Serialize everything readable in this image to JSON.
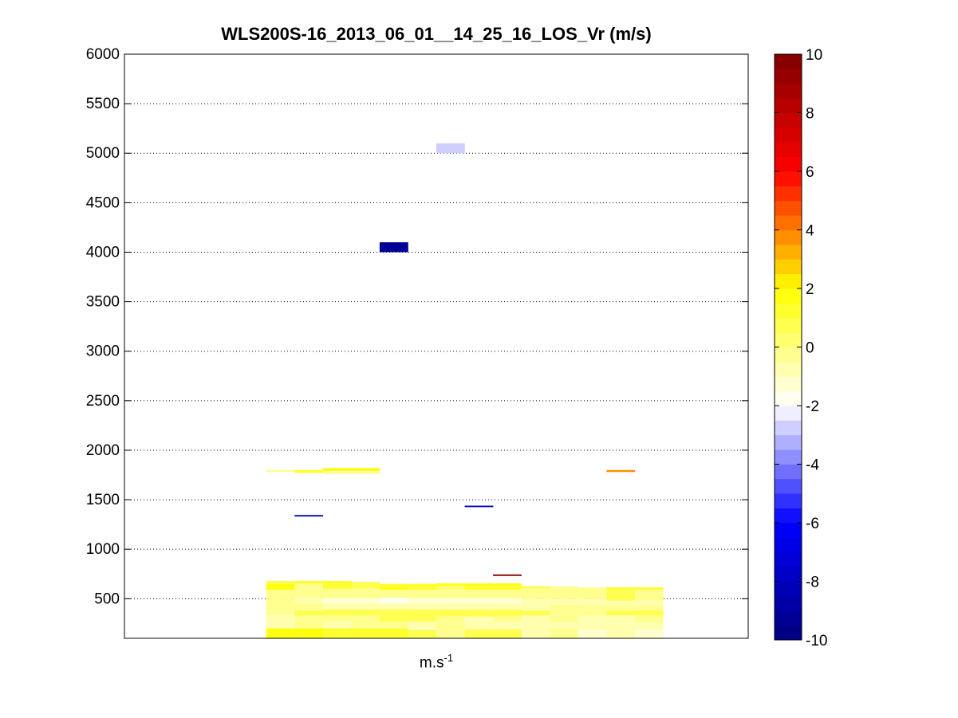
{
  "chart_data": {
    "type": "heatmap",
    "title": "WLS200S-16_2013_06_01__14_25_16_LOS_Vr (m/s)",
    "xlabel": "m.s",
    "xlabel_superscript": "-1",
    "ylabel": "",
    "ylim": [
      100,
      6000
    ],
    "yticks": [
      500,
      1000,
      1500,
      2000,
      2500,
      3000,
      3500,
      4000,
      4500,
      5000,
      5500,
      6000
    ],
    "grid": "horizontal dotted",
    "colorbar": {
      "range": [
        -10,
        10
      ],
      "ticks": [
        -10,
        -8,
        -6,
        -4,
        -2,
        0,
        2,
        4,
        6,
        8,
        10
      ],
      "levels": 40,
      "colormap": [
        "#00007f",
        "#0000ff",
        "#ffffff",
        "#ffff00",
        "#ff0000",
        "#7f0000"
      ]
    },
    "x_columns": {
      "count": 22,
      "first": 5,
      "last": 18
    },
    "cells": [
      {
        "col": 11,
        "y0": 5000,
        "y1": 5100,
        "v": -2.6
      },
      {
        "col": 9,
        "y0": 4000,
        "y1": 4100,
        "v": -9.5
      },
      {
        "col": 5,
        "y0": 1780,
        "y1": 1800,
        "v": -0.3
      },
      {
        "col": 6,
        "y0": 1770,
        "y1": 1800,
        "v": 1.2
      },
      {
        "col": 7,
        "y0": 1790,
        "y1": 1820,
        "v": 1.5
      },
      {
        "col": 8,
        "y0": 1790,
        "y1": 1820,
        "v": 1.5
      },
      {
        "col": 7,
        "y0": 1760,
        "y1": 1785,
        "v": -0.3
      },
      {
        "col": 8,
        "y0": 1760,
        "y1": 1785,
        "v": -0.3
      },
      {
        "col": 17,
        "y0": 1780,
        "y1": 1800,
        "v": 3.5
      },
      {
        "col": 6,
        "y0": 1330,
        "y1": 1345,
        "v": -8.5
      },
      {
        "col": 12,
        "y0": 1425,
        "y1": 1440,
        "v": -8.5
      },
      {
        "col": 13,
        "y0": 730,
        "y1": 745,
        "v": 9.5
      },
      {
        "col": 5,
        "y0": 650,
        "y1": 680,
        "v": 0.5
      },
      {
        "col": 6,
        "y0": 650,
        "y1": 680,
        "v": 1.2
      },
      {
        "col": 7,
        "y0": 650,
        "y1": 680,
        "v": 1.2
      },
      {
        "col": 8,
        "y0": 640,
        "y1": 670,
        "v": 0.5
      },
      {
        "col": 9,
        "y0": 620,
        "y1": 650,
        "v": 1.0
      },
      {
        "col": 10,
        "y0": 620,
        "y1": 650,
        "v": 1.2
      },
      {
        "col": 11,
        "y0": 630,
        "y1": 655,
        "v": 1.5
      },
      {
        "col": 12,
        "y0": 630,
        "y1": 655,
        "v": 1.5
      },
      {
        "col": 13,
        "y0": 630,
        "y1": 655,
        "v": 1.5
      },
      {
        "col": 14,
        "y0": 600,
        "y1": 625,
        "v": 0.5
      },
      {
        "col": 15,
        "y0": 600,
        "y1": 625,
        "v": -0.2
      },
      {
        "col": 16,
        "y0": 590,
        "y1": 615,
        "v": -0.4
      },
      {
        "col": 17,
        "y0": 590,
        "y1": 615,
        "v": 1.0
      },
      {
        "col": 18,
        "y0": 590,
        "y1": 615,
        "v": 1.2
      },
      {
        "col": 5,
        "y0": 590,
        "y1": 650,
        "v": 1.5
      },
      {
        "col": 6,
        "y0": 600,
        "y1": 650,
        "v": -0.4
      },
      {
        "col": 7,
        "y0": 600,
        "y1": 650,
        "v": 1.2
      },
      {
        "col": 8,
        "y0": 600,
        "y1": 640,
        "v": 0.5
      },
      {
        "col": 9,
        "y0": 590,
        "y1": 620,
        "v": 1.5
      },
      {
        "col": 10,
        "y0": 590,
        "y1": 620,
        "v": 1.2
      },
      {
        "col": 11,
        "y0": 590,
        "y1": 630,
        "v": 0.4
      },
      {
        "col": 12,
        "y0": 590,
        "y1": 630,
        "v": 1.2
      },
      {
        "col": 13,
        "y0": 590,
        "y1": 630,
        "v": 1.0
      },
      {
        "col": 17,
        "y0": 560,
        "y1": 590,
        "v": 0.6
      },
      {
        "col": 18,
        "y0": 560,
        "y1": 590,
        "v": -0.2
      },
      {
        "col": 5,
        "y0": 500,
        "y1": 590,
        "v": -0.3
      },
      {
        "col": 6,
        "y0": 510,
        "y1": 600,
        "v": -0.3
      },
      {
        "col": 7,
        "y0": 510,
        "y1": 600,
        "v": -0.2
      },
      {
        "col": 8,
        "y0": 510,
        "y1": 600,
        "v": -0.3
      },
      {
        "col": 9,
        "y0": 510,
        "y1": 590,
        "v": -0.3
      },
      {
        "col": 10,
        "y0": 510,
        "y1": 590,
        "v": -0.4
      },
      {
        "col": 11,
        "y0": 510,
        "y1": 590,
        "v": -0.2
      },
      {
        "col": 12,
        "y0": 510,
        "y1": 590,
        "v": -0.4
      },
      {
        "col": 13,
        "y0": 510,
        "y1": 590,
        "v": -0.3
      },
      {
        "col": 14,
        "y0": 500,
        "y1": 600,
        "v": -0.2
      },
      {
        "col": 15,
        "y0": 500,
        "y1": 600,
        "v": -0.3
      },
      {
        "col": 16,
        "y0": 500,
        "y1": 590,
        "v": -0.2
      },
      {
        "col": 17,
        "y0": 480,
        "y1": 560,
        "v": 0.6
      },
      {
        "col": 18,
        "y0": 480,
        "y1": 560,
        "v": -0.3
      },
      {
        "col": 6,
        "y0": 450,
        "y1": 510,
        "v": -0.8
      },
      {
        "col": 7,
        "y0": 450,
        "y1": 510,
        "v": -1.5
      },
      {
        "col": 8,
        "y0": 450,
        "y1": 510,
        "v": -1.5
      },
      {
        "col": 9,
        "y0": 450,
        "y1": 510,
        "v": -1.6
      },
      {
        "col": 10,
        "y0": 450,
        "y1": 510,
        "v": -1.2
      },
      {
        "col": 11,
        "y0": 450,
        "y1": 510,
        "v": -1.3
      },
      {
        "col": 12,
        "y0": 450,
        "y1": 510,
        "v": -1.5
      },
      {
        "col": 13,
        "y0": 450,
        "y1": 510,
        "v": -1.2
      },
      {
        "col": 14,
        "y0": 440,
        "y1": 500,
        "v": -1.0
      },
      {
        "col": 15,
        "y0": 440,
        "y1": 500,
        "v": -0.6
      },
      {
        "col": 16,
        "y0": 430,
        "y1": 500,
        "v": -0.7
      },
      {
        "col": 17,
        "y0": 430,
        "y1": 480,
        "v": -0.7
      },
      {
        "col": 18,
        "y0": 430,
        "y1": 480,
        "v": -0.8
      },
      {
        "col": 5,
        "y0": 380,
        "y1": 500,
        "v": -0.5
      },
      {
        "col": 6,
        "y0": 380,
        "y1": 450,
        "v": -0.4
      },
      {
        "col": 7,
        "y0": 390,
        "y1": 450,
        "v": -0.6
      },
      {
        "col": 8,
        "y0": 390,
        "y1": 450,
        "v": -0.8
      },
      {
        "col": 9,
        "y0": 390,
        "y1": 450,
        "v": -1.0
      },
      {
        "col": 10,
        "y0": 390,
        "y1": 450,
        "v": -0.7
      },
      {
        "col": 11,
        "y0": 390,
        "y1": 450,
        "v": -0.9
      },
      {
        "col": 12,
        "y0": 390,
        "y1": 450,
        "v": -0.8
      },
      {
        "col": 13,
        "y0": 390,
        "y1": 450,
        "v": -0.9
      },
      {
        "col": 14,
        "y0": 380,
        "y1": 440,
        "v": -0.8
      },
      {
        "col": 15,
        "y0": 380,
        "y1": 440,
        "v": -0.5
      },
      {
        "col": 16,
        "y0": 380,
        "y1": 430,
        "v": -0.3
      },
      {
        "col": 17,
        "y0": 380,
        "y1": 430,
        "v": -0.2
      },
      {
        "col": 18,
        "y0": 380,
        "y1": 430,
        "v": -0.4
      },
      {
        "col": 5,
        "y0": 340,
        "y1": 380,
        "v": -0.2
      },
      {
        "col": 6,
        "y0": 330,
        "y1": 380,
        "v": 0.8
      },
      {
        "col": 7,
        "y0": 330,
        "y1": 390,
        "v": 0.7
      },
      {
        "col": 8,
        "y0": 330,
        "y1": 390,
        "v": 0.9
      },
      {
        "col": 9,
        "y0": 320,
        "y1": 390,
        "v": 0.8
      },
      {
        "col": 10,
        "y0": 320,
        "y1": 390,
        "v": 0.7
      },
      {
        "col": 11,
        "y0": 320,
        "y1": 390,
        "v": 0.9
      },
      {
        "col": 12,
        "y0": 320,
        "y1": 390,
        "v": 0.9
      },
      {
        "col": 13,
        "y0": 320,
        "y1": 390,
        "v": 0.6
      },
      {
        "col": 14,
        "y0": 330,
        "y1": 380,
        "v": 0.6
      },
      {
        "col": 15,
        "y0": 330,
        "y1": 380,
        "v": -0.3
      },
      {
        "col": 16,
        "y0": 330,
        "y1": 380,
        "v": -0.3
      },
      {
        "col": 17,
        "y0": 330,
        "y1": 380,
        "v": 0.6
      },
      {
        "col": 18,
        "y0": 330,
        "y1": 380,
        "v": 0.8
      },
      {
        "col": 5,
        "y0": 260,
        "y1": 340,
        "v": -0.6
      },
      {
        "col": 6,
        "y0": 270,
        "y1": 330,
        "v": -0.4
      },
      {
        "col": 7,
        "y0": 270,
        "y1": 330,
        "v": -0.3
      },
      {
        "col": 8,
        "y0": 270,
        "y1": 330,
        "v": -0.4
      },
      {
        "col": 9,
        "y0": 270,
        "y1": 320,
        "v": 0.5
      },
      {
        "col": 10,
        "y0": 270,
        "y1": 320,
        "v": 0.6
      },
      {
        "col": 11,
        "y0": 270,
        "y1": 320,
        "v": -0.5
      },
      {
        "col": 12,
        "y0": 270,
        "y1": 320,
        "v": -0.6
      },
      {
        "col": 13,
        "y0": 270,
        "y1": 320,
        "v": -0.4
      },
      {
        "col": 14,
        "y0": 260,
        "y1": 330,
        "v": -0.6
      },
      {
        "col": 15,
        "y0": 260,
        "y1": 330,
        "v": -0.5
      },
      {
        "col": 16,
        "y0": 260,
        "y1": 330,
        "v": -0.6
      },
      {
        "col": 17,
        "y0": 260,
        "y1": 330,
        "v": -0.8
      },
      {
        "col": 18,
        "y0": 260,
        "y1": 330,
        "v": -0.5
      },
      {
        "col": 5,
        "y0": 200,
        "y1": 260,
        "v": -0.9
      },
      {
        "col": 6,
        "y0": 200,
        "y1": 270,
        "v": -0.4
      },
      {
        "col": 7,
        "y0": 200,
        "y1": 270,
        "v": -0.7
      },
      {
        "col": 8,
        "y0": 200,
        "y1": 270,
        "v": -0.5
      },
      {
        "col": 9,
        "y0": 200,
        "y1": 270,
        "v": -0.4
      },
      {
        "col": 10,
        "y0": 200,
        "y1": 270,
        "v": -0.7
      },
      {
        "col": 11,
        "y0": 190,
        "y1": 270,
        "v": -0.3
      },
      {
        "col": 12,
        "y0": 190,
        "y1": 270,
        "v": -1.0
      },
      {
        "col": 13,
        "y0": 190,
        "y1": 270,
        "v": -0.7
      },
      {
        "col": 14,
        "y0": 190,
        "y1": 260,
        "v": -0.9
      },
      {
        "col": 15,
        "y0": 190,
        "y1": 260,
        "v": -0.8
      },
      {
        "col": 16,
        "y0": 190,
        "y1": 260,
        "v": -1.0
      },
      {
        "col": 17,
        "y0": 190,
        "y1": 260,
        "v": -0.9
      },
      {
        "col": 18,
        "y0": 190,
        "y1": 260,
        "v": -0.6
      },
      {
        "col": 5,
        "y0": 100,
        "y1": 200,
        "v": 1.6
      },
      {
        "col": 6,
        "y0": 100,
        "y1": 200,
        "v": 1.5
      },
      {
        "col": 7,
        "y0": 100,
        "y1": 200,
        "v": 1.2
      },
      {
        "col": 8,
        "y0": 100,
        "y1": 200,
        "v": 1.4
      },
      {
        "col": 9,
        "y0": 100,
        "y1": 200,
        "v": 1.0
      },
      {
        "col": 10,
        "y0": 100,
        "y1": 190,
        "v": 0.7
      },
      {
        "col": 11,
        "y0": 100,
        "y1": 190,
        "v": -0.4
      },
      {
        "col": 12,
        "y0": 100,
        "y1": 190,
        "v": 0.6
      },
      {
        "col": 13,
        "y0": 100,
        "y1": 190,
        "v": 0.5
      },
      {
        "col": 14,
        "y0": 100,
        "y1": 190,
        "v": -0.8
      },
      {
        "col": 15,
        "y0": 100,
        "y1": 190,
        "v": -0.5
      },
      {
        "col": 16,
        "y0": 100,
        "y1": 190,
        "v": -1.2
      },
      {
        "col": 17,
        "y0": 100,
        "y1": 190,
        "v": -1.0
      },
      {
        "col": 18,
        "y0": 100,
        "y1": 190,
        "v": -1.1
      }
    ]
  }
}
